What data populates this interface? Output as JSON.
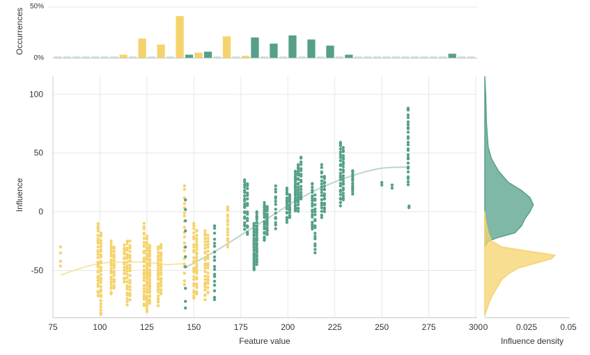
{
  "colors": {
    "yellow": "#f5d36c",
    "green": "#56a08a",
    "yellow_curve": "#f6e6a8",
    "green_curve": "#b8d6cc",
    "grid": "#e6e6e6",
    "axis": "#c8c8c8",
    "text": "#333333",
    "flat_bar": "#cfe3de"
  },
  "chart_data": [
    {
      "id": "top",
      "type": "bar",
      "ylabel": "Occurrences",
      "yticks": [
        "50%",
        "0%"
      ],
      "xlim": [
        75,
        300
      ],
      "bin_width": 5,
      "bars": [
        {
          "x": 77.5,
          "v": 0.3,
          "c": "flat"
        },
        {
          "x": 82.5,
          "v": 0.3,
          "c": "flat"
        },
        {
          "x": 87.5,
          "v": 0.3,
          "c": "flat"
        },
        {
          "x": 92.5,
          "v": 0.3,
          "c": "flat"
        },
        {
          "x": 97.5,
          "v": 0.3,
          "c": "flat"
        },
        {
          "x": 102.5,
          "v": 0.3,
          "c": "flat"
        },
        {
          "x": 107.5,
          "v": 0.3,
          "c": "flat"
        },
        {
          "x": 112.5,
          "v": 3,
          "c": "yellow"
        },
        {
          "x": 117.5,
          "v": 0.3,
          "c": "flat"
        },
        {
          "x": 122.5,
          "v": 19,
          "c": "yellow"
        },
        {
          "x": 127.5,
          "v": 0.3,
          "c": "flat"
        },
        {
          "x": 132.5,
          "v": 13,
          "c": "yellow"
        },
        {
          "x": 137.5,
          "v": 0.3,
          "c": "flat"
        },
        {
          "x": 142.5,
          "v": 41,
          "c": "yellow"
        },
        {
          "x": 147.5,
          "v": 3,
          "c": "green"
        },
        {
          "x": 152.5,
          "v": 5,
          "c": "yellow"
        },
        {
          "x": 157.5,
          "v": 6,
          "c": "green"
        },
        {
          "x": 162.5,
          "v": 0.3,
          "c": "flat"
        },
        {
          "x": 167.5,
          "v": 21,
          "c": "yellow"
        },
        {
          "x": 172.5,
          "v": 0.3,
          "c": "flat"
        },
        {
          "x": 177.5,
          "v": 2,
          "c": "yellow"
        },
        {
          "x": 182.5,
          "v": 20,
          "c": "green"
        },
        {
          "x": 187.5,
          "v": 0.3,
          "c": "flat"
        },
        {
          "x": 192.5,
          "v": 14,
          "c": "green"
        },
        {
          "x": 197.5,
          "v": 0.3,
          "c": "flat"
        },
        {
          "x": 202.5,
          "v": 22,
          "c": "green"
        },
        {
          "x": 207.5,
          "v": 0.3,
          "c": "flat"
        },
        {
          "x": 212.5,
          "v": 18,
          "c": "green"
        },
        {
          "x": 217.5,
          "v": 0.3,
          "c": "flat"
        },
        {
          "x": 222.5,
          "v": 12,
          "c": "green"
        },
        {
          "x": 227.5,
          "v": 0.3,
          "c": "flat"
        },
        {
          "x": 232.5,
          "v": 3,
          "c": "green"
        },
        {
          "x": 237.5,
          "v": 0.3,
          "c": "flat"
        },
        {
          "x": 242.5,
          "v": 0.3,
          "c": "flat"
        },
        {
          "x": 247.5,
          "v": 0.3,
          "c": "flat"
        },
        {
          "x": 252.5,
          "v": 0.3,
          "c": "flat"
        },
        {
          "x": 257.5,
          "v": 0.3,
          "c": "flat"
        },
        {
          "x": 262.5,
          "v": 0.3,
          "c": "flat"
        },
        {
          "x": 267.5,
          "v": 0.3,
          "c": "flat"
        },
        {
          "x": 272.5,
          "v": 0.3,
          "c": "flat"
        },
        {
          "x": 277.5,
          "v": 0.3,
          "c": "flat"
        },
        {
          "x": 282.5,
          "v": 0.3,
          "c": "flat"
        },
        {
          "x": 287.5,
          "v": 4,
          "c": "green"
        },
        {
          "x": 292.5,
          "v": 0.3,
          "c": "flat"
        },
        {
          "x": 297.5,
          "v": 0.3,
          "c": "flat"
        }
      ],
      "ylim": [
        0,
        50
      ]
    },
    {
      "id": "main",
      "type": "scatter",
      "xlabel": "Feature value",
      "ylabel": "Influence",
      "xlim": [
        75,
        300
      ],
      "ylim": [
        -90,
        115
      ],
      "xticks": [
        75,
        100,
        125,
        150,
        175,
        200,
        225,
        250,
        275,
        300
      ],
      "yticks": [
        100,
        50,
        0,
        -50
      ],
      "columns": [
        {
          "x": 79,
          "c": "yellow",
          "ymin": -47,
          "ymax": -30,
          "n": 4
        },
        {
          "x": 99,
          "c": "yellow",
          "ymin": -72,
          "ymax": -10,
          "n": 26
        },
        {
          "x": 100.5,
          "c": "yellow",
          "ymin": -88,
          "ymax": -17,
          "n": 30
        },
        {
          "x": 106,
          "c": "yellow",
          "ymin": -70,
          "ymax": -25,
          "n": 22
        },
        {
          "x": 107.5,
          "c": "yellow",
          "ymin": -65,
          "ymax": -30,
          "n": 18
        },
        {
          "x": 113,
          "c": "yellow",
          "ymin": -60,
          "ymax": -28,
          "n": 16
        },
        {
          "x": 114.5,
          "c": "yellow",
          "ymin": -80,
          "ymax": -25,
          "n": 22
        },
        {
          "x": 116,
          "c": "yellow",
          "ymin": -75,
          "ymax": -25,
          "n": 18
        },
        {
          "x": 123.5,
          "c": "yellow",
          "ymin": -80,
          "ymax": -10,
          "n": 28
        },
        {
          "x": 125,
          "c": "yellow",
          "ymin": -85,
          "ymax": -20,
          "n": 34
        },
        {
          "x": 126.5,
          "c": "yellow",
          "ymin": -78,
          "ymax": -28,
          "n": 30
        },
        {
          "x": 131,
          "c": "yellow",
          "ymin": -80,
          "ymax": -30,
          "n": 24
        },
        {
          "x": 132.5,
          "c": "yellow",
          "ymin": -70,
          "ymax": -28,
          "n": 22
        },
        {
          "x": 145,
          "c": "yellow",
          "ymin": -62,
          "ymax": 22,
          "n": 20
        },
        {
          "x": 145.5,
          "c": "green",
          "ymin": -82,
          "ymax": 10,
          "n": 10
        },
        {
          "x": 150,
          "c": "yellow",
          "ymin": -75,
          "ymax": -10,
          "n": 24
        },
        {
          "x": 151.5,
          "c": "yellow",
          "ymin": -70,
          "ymax": -15,
          "n": 24
        },
        {
          "x": 156,
          "c": "yellow",
          "ymin": -75,
          "ymax": -15,
          "n": 24
        },
        {
          "x": 157.5,
          "c": "yellow",
          "ymin": -70,
          "ymax": -20,
          "n": 20
        },
        {
          "x": 161,
          "c": "green",
          "ymin": -75,
          "ymax": -12,
          "n": 18
        },
        {
          "x": 168,
          "c": "yellow",
          "ymin": -30,
          "ymax": 5,
          "n": 16
        },
        {
          "x": 177,
          "c": "green",
          "ymin": -15,
          "ymax": 27,
          "n": 20
        },
        {
          "x": 178.5,
          "c": "green",
          "ymin": -20,
          "ymax": 25,
          "n": 16
        },
        {
          "x": 182,
          "c": "green",
          "ymin": -50,
          "ymax": -10,
          "n": 30
        },
        {
          "x": 183.5,
          "c": "green",
          "ymin": -45,
          "ymax": 0,
          "n": 28
        },
        {
          "x": 187.5,
          "c": "green",
          "ymin": -25,
          "ymax": 8,
          "n": 18
        },
        {
          "x": 189,
          "c": "green",
          "ymin": -20,
          "ymax": 5,
          "n": 16
        },
        {
          "x": 193.5,
          "c": "green",
          "ymin": -15,
          "ymax": 22,
          "n": 14
        },
        {
          "x": 199.5,
          "c": "green",
          "ymin": -10,
          "ymax": 20,
          "n": 16
        },
        {
          "x": 201,
          "c": "green",
          "ymin": -5,
          "ymax": 15,
          "n": 12
        },
        {
          "x": 204,
          "c": "green",
          "ymin": 0,
          "ymax": 35,
          "n": 24
        },
        {
          "x": 205.5,
          "c": "green",
          "ymin": 0,
          "ymax": 40,
          "n": 22
        },
        {
          "x": 207,
          "c": "green",
          "ymin": 10,
          "ymax": 47,
          "n": 16
        },
        {
          "x": 213,
          "c": "green",
          "ymin": -15,
          "ymax": 25,
          "n": 18
        },
        {
          "x": 214.5,
          "c": "green",
          "ymin": -35,
          "ymax": 15,
          "n": 18
        },
        {
          "x": 218,
          "c": "green",
          "ymin": -5,
          "ymax": 40,
          "n": 18
        },
        {
          "x": 219.5,
          "c": "green",
          "ymin": 0,
          "ymax": 30,
          "n": 16
        },
        {
          "x": 228,
          "c": "green",
          "ymin": 5,
          "ymax": 60,
          "n": 24
        },
        {
          "x": 229.5,
          "c": "green",
          "ymin": 10,
          "ymax": 55,
          "n": 22
        },
        {
          "x": 234.5,
          "c": "green",
          "ymin": 15,
          "ymax": 35,
          "n": 14
        },
        {
          "x": 250,
          "c": "green",
          "ymin": 22,
          "ymax": 25,
          "n": 2
        },
        {
          "x": 255.5,
          "c": "green",
          "ymin": 20,
          "ymax": 23,
          "n": 2
        },
        {
          "x": 264,
          "c": "green",
          "ymin": 23,
          "ymax": 88,
          "n": 26
        },
        {
          "x": 264.5,
          "c": "green",
          "ymin": 3,
          "ymax": 5,
          "n": 2
        }
      ],
      "curves": [
        {
          "c": "yellow_curve",
          "points": [
            [
              79,
              -54
            ],
            [
              90,
              -48
            ],
            [
              100,
              -44
            ],
            [
              110,
              -43
            ],
            [
              125,
              -43
            ],
            [
              135,
              -45
            ],
            [
              145,
              -44
            ]
          ]
        },
        {
          "c": "green_curve",
          "points": [
            [
              145,
              -48
            ],
            [
              160,
              -35
            ],
            [
              175,
              -20
            ],
            [
              190,
              -5
            ],
            [
              205,
              10
            ],
            [
              220,
              22
            ],
            [
              235,
              31
            ],
            [
              250,
              37
            ],
            [
              265,
              38
            ]
          ]
        }
      ]
    },
    {
      "id": "density",
      "type": "area",
      "xlabel": "Influence density",
      "xticks": [
        "0",
        "0.025",
        "0.05"
      ],
      "xlim": [
        0,
        0.05
      ],
      "series": [
        {
          "name": "green",
          "c": "green",
          "points": [
            [
              115,
              0
            ],
            [
              100,
              0.0005
            ],
            [
              75,
              0.001
            ],
            [
              55,
              0.002
            ],
            [
              45,
              0.004
            ],
            [
              35,
              0.008
            ],
            [
              25,
              0.014
            ],
            [
              18,
              0.022
            ],
            [
              12,
              0.027
            ],
            [
              6,
              0.029
            ],
            [
              0,
              0.027
            ],
            [
              -6,
              0.024
            ],
            [
              -12,
              0.022
            ],
            [
              -18,
              0.018
            ],
            [
              -22,
              0.008
            ],
            [
              -25,
              0.002
            ],
            [
              -30,
              0
            ]
          ]
        },
        {
          "name": "yellow",
          "c": "yellow",
          "points": [
            [
              0,
              0
            ],
            [
              -8,
              0.0005
            ],
            [
              -18,
              0.002
            ],
            [
              -25,
              0.004
            ],
            [
              -30,
              0.01
            ],
            [
              -34,
              0.028
            ],
            [
              -37,
              0.042
            ],
            [
              -40,
              0.04
            ],
            [
              -44,
              0.03
            ],
            [
              -48,
              0.02
            ],
            [
              -53,
              0.014
            ],
            [
              -58,
              0.01
            ],
            [
              -63,
              0.008
            ],
            [
              -70,
              0.005
            ],
            [
              -76,
              0.003
            ],
            [
              -82,
              0.0015
            ],
            [
              -88,
              0
            ]
          ]
        }
      ]
    }
  ]
}
